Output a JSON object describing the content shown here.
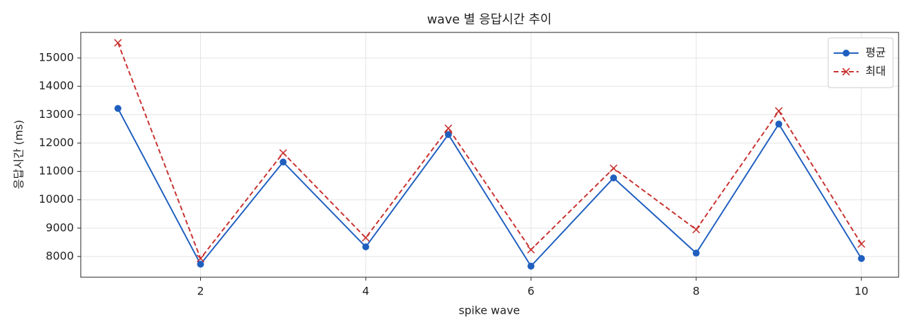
{
  "chart_data": {
    "type": "line",
    "title": "wave 별 응답시간 추이",
    "xlabel": "spike wave",
    "ylabel": "응답시간 (ms)",
    "x": [
      1,
      2,
      3,
      4,
      5,
      6,
      7,
      8,
      9,
      10
    ],
    "series": [
      {
        "name": "평균",
        "color": "#1f5fbf",
        "marker": "o",
        "linestyle": "solid",
        "values": [
          13220,
          7730,
          11330,
          8340,
          12300,
          7660,
          10770,
          8120,
          12670,
          7930
        ]
      },
      {
        "name": "최대",
        "color": "#c8312f",
        "marker": "x",
        "linestyle": "dashed",
        "values": [
          15535,
          7930,
          11650,
          8660,
          12520,
          8240,
          11110,
          8950,
          13130,
          8440
        ]
      }
    ],
    "xlim": [
      0.55,
      10.45
    ],
    "ylim": [
      7270,
      15900
    ],
    "xticks": [
      2,
      4,
      6,
      8,
      10
    ],
    "yticks": [
      8000,
      9000,
      10000,
      11000,
      12000,
      13000,
      14000,
      15000
    ],
    "grid": true,
    "legend": "upper right"
  }
}
